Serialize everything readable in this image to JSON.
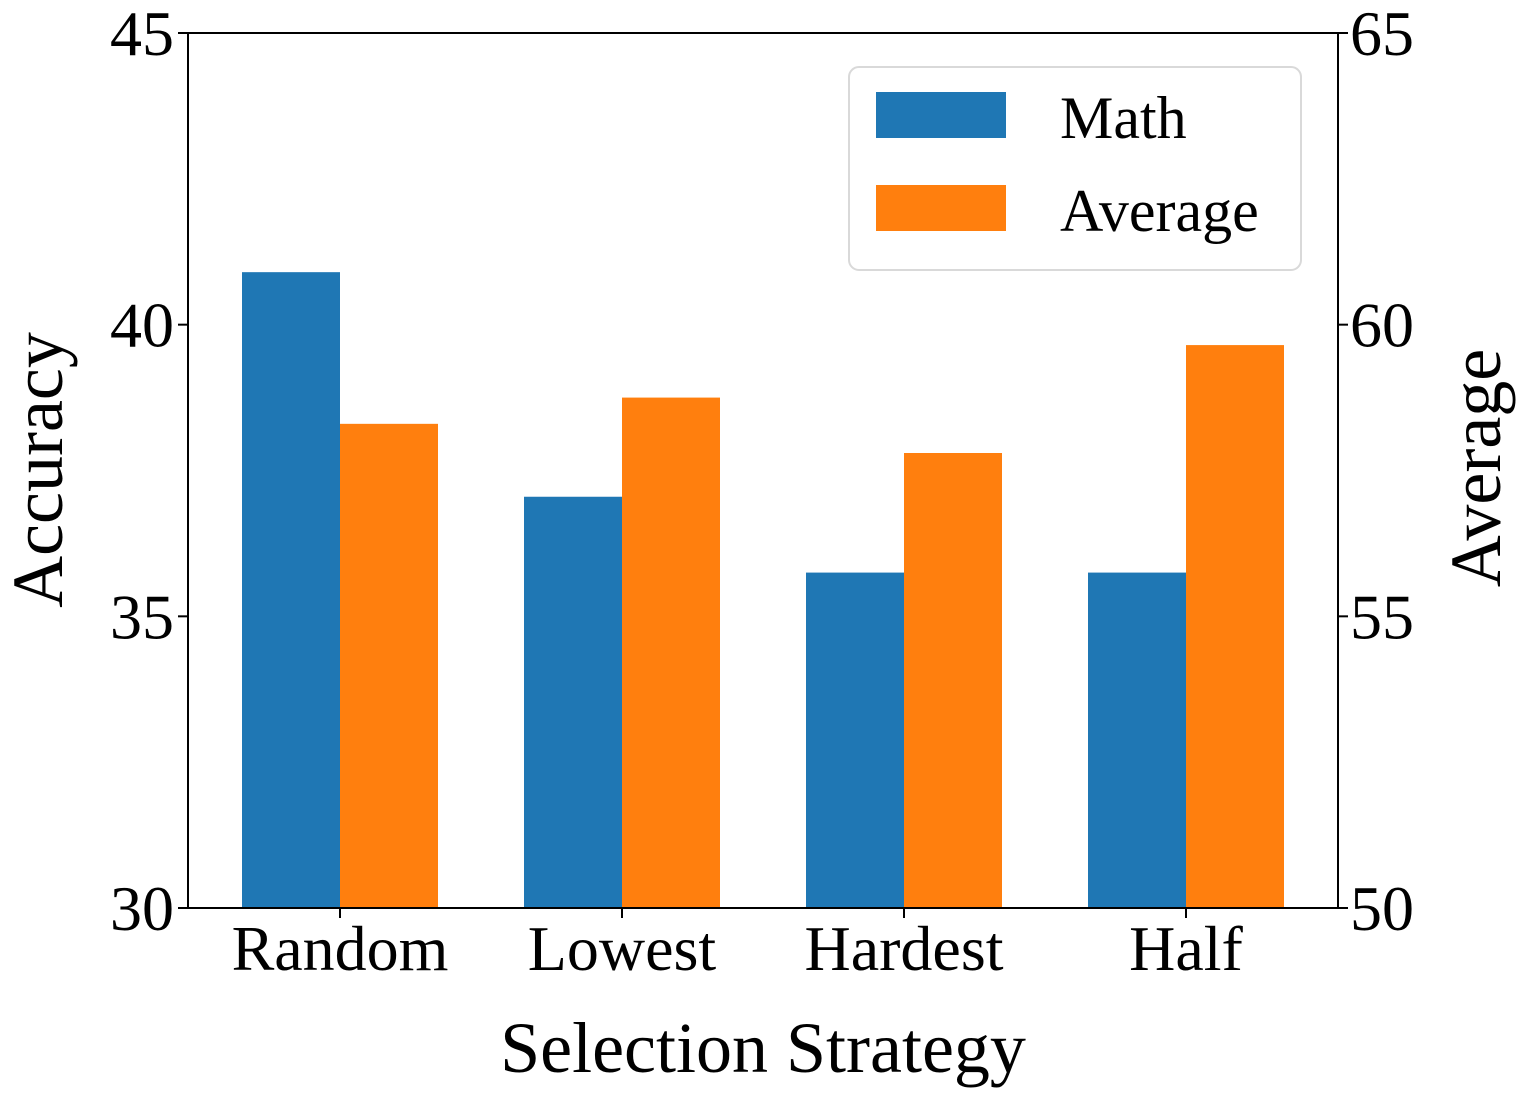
{
  "chart_data": {
    "type": "bar",
    "categories": [
      "Random",
      "Lowest",
      "Hardest",
      "Half"
    ],
    "xlabel": "Selection Strategy",
    "series": [
      {
        "name": "Math",
        "axis": "left",
        "color": "#1f77b4",
        "values": [
          40.9,
          37.05,
          35.75,
          35.75
        ]
      },
      {
        "name": "Average",
        "axis": "right",
        "color": "#ff7f0e",
        "values": [
          58.3,
          58.75,
          57.8,
          59.65
        ]
      }
    ],
    "y_left": {
      "label": "Accuracy",
      "ylim": [
        30,
        45
      ],
      "ticks": [
        {
          "value": 30,
          "label": "30"
        },
        {
          "value": 35,
          "label": "35"
        },
        {
          "value": 40,
          "label": "40"
        },
        {
          "value": 45,
          "label": "45"
        }
      ]
    },
    "y_right": {
      "label": "Average",
      "ylim": [
        50,
        65
      ],
      "ticks": [
        {
          "value": 50,
          "label": "50"
        },
        {
          "value": 55,
          "label": "55"
        },
        {
          "value": 60,
          "label": "60"
        },
        {
          "value": 65,
          "label": "65"
        }
      ]
    },
    "legend": {
      "placement": "top-right",
      "entries": [
        "Math",
        "Average"
      ]
    },
    "grid": false
  }
}
